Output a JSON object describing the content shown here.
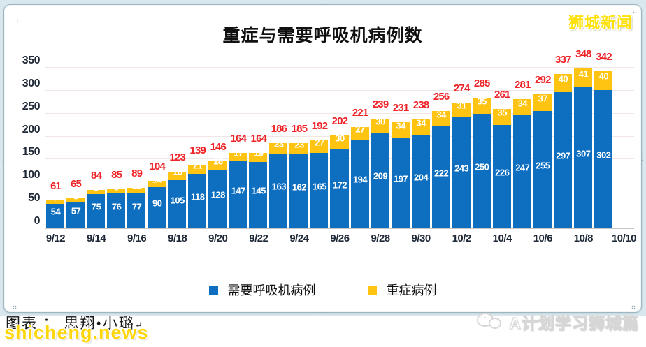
{
  "window": {
    "background_band_color": "#d9e8ee"
  },
  "branding": {
    "logo_top_right": "狮城新闻",
    "watermark": "shicheng.news",
    "credit": "图表 ： 思翔•小璐",
    "return_mark": "↵",
    "wechat_account": "A计划学习狮城篇"
  },
  "chart_data": {
    "type": "bar",
    "stacked": true,
    "title": "重症与需要呼吸机病例数",
    "categories": [
      "9/12",
      "9/13",
      "9/14",
      "9/15",
      "9/16",
      "9/17",
      "9/18",
      "9/19",
      "9/20",
      "9/21",
      "9/22",
      "9/23",
      "9/24",
      "9/25",
      "9/26",
      "9/27",
      "9/28",
      "9/29",
      "9/30",
      "10/1",
      "10/2",
      "10/3",
      "10/4",
      "10/5",
      "10/6",
      "10/7",
      "10/8",
      "10/9"
    ],
    "x_axis_tick_labels": [
      "9/12",
      "9/14",
      "9/16",
      "9/18",
      "9/20",
      "9/22",
      "9/24",
      "9/26",
      "9/28",
      "9/30",
      "10/2",
      "10/4",
      "10/6",
      "10/8",
      "10/10"
    ],
    "series": [
      {
        "name": "需要呼吸机病例",
        "color": "#0e6fc1",
        "values": [
          54,
          57,
          75,
          76,
          77,
          90,
          105,
          118,
          128,
          147,
          145,
          163,
          162,
          165,
          172,
          194,
          209,
          197,
          204,
          222,
          243,
          250,
          226,
          247,
          255,
          297,
          307,
          302
        ]
      },
      {
        "name": "重症病例",
        "color": "#ffc411",
        "values": [
          7,
          8,
          9,
          9,
          12,
          14,
          18,
          21,
          18,
          17,
          19,
          23,
          23,
          27,
          30,
          27,
          30,
          34,
          34,
          34,
          31,
          35,
          35,
          34,
          37,
          40,
          41,
          40
        ]
      }
    ],
    "totals": [
      61,
      65,
      84,
      85,
      89,
      104,
      123,
      139,
      146,
      164,
      164,
      186,
      185,
      192,
      202,
      221,
      239,
      231,
      238,
      256,
      274,
      285,
      261,
      281,
      292,
      337,
      348,
      342
    ],
    "total_label_color": "#ee2428",
    "bar_value_label_color": "#ffffff",
    "axis_text_color": "#1e2836",
    "gridline_color": "#f0e6e6",
    "ylim": [
      0,
      350
    ],
    "y_ticks": [
      0,
      50,
      100,
      150,
      200,
      250,
      300,
      350
    ],
    "grid": true,
    "legend_position": "bottom"
  }
}
